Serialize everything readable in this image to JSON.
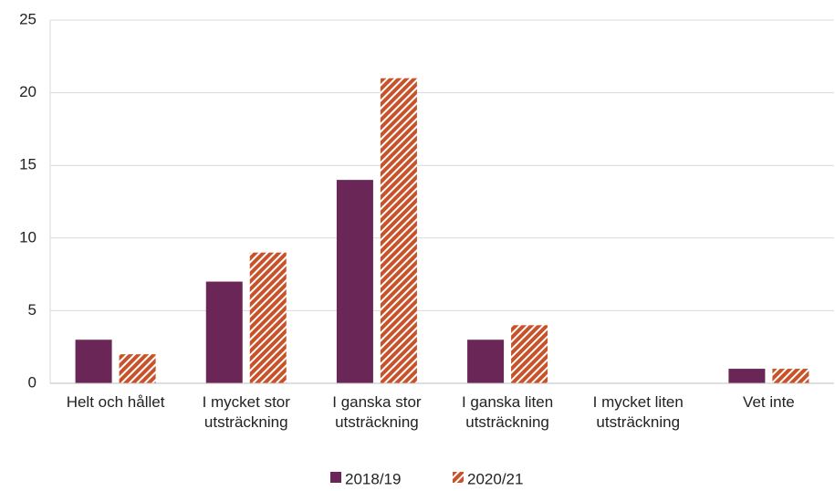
{
  "chart_data": {
    "type": "bar",
    "categories": [
      [
        "Helt och hållet"
      ],
      [
        "I mycket stor",
        "utsträckning"
      ],
      [
        "I ganska stor",
        "utsträckning"
      ],
      [
        "I ganska liten",
        "utsträckning"
      ],
      [
        "I mycket liten",
        "utsträckning"
      ],
      [
        "Vet inte"
      ]
    ],
    "series": [
      {
        "name": "2018/19",
        "color": "#6a2657",
        "pattern": "solid",
        "values": [
          3,
          7,
          14,
          3,
          0,
          1
        ]
      },
      {
        "name": "2020/21",
        "color": "#c8522a",
        "pattern": "hatch",
        "values": [
          2,
          9,
          21,
          4,
          0,
          1
        ]
      }
    ],
    "ylim": [
      0,
      25
    ],
    "yticks": [
      0,
      5,
      10,
      15,
      20,
      25
    ],
    "grid": true,
    "legend": "bottom"
  }
}
